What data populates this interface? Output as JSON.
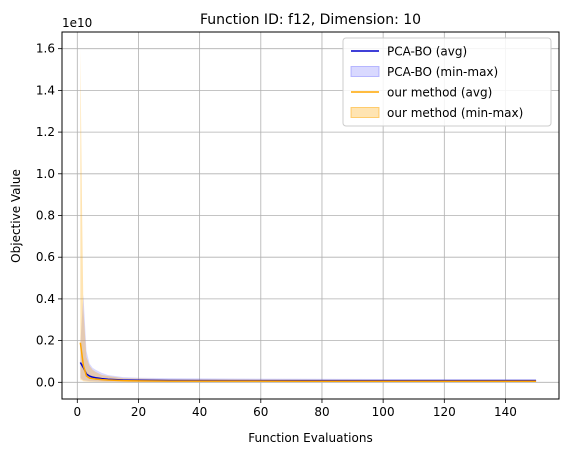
{
  "chart_data": {
    "type": "line",
    "title": "Function ID: f12, Dimension: 10",
    "xlabel": "Function Evaluations",
    "ylabel": "Objective Value",
    "y_offset_label": "1e10",
    "xlim": [
      -5,
      157.5
    ],
    "ylim": [
      -0.08,
      1.68
    ],
    "x_ticks": [
      0,
      20,
      40,
      60,
      80,
      100,
      120,
      140
    ],
    "x_tick_labels": [
      "0",
      "20",
      "40",
      "60",
      "80",
      "100",
      "120",
      "140"
    ],
    "y_ticks": [
      0.0,
      0.2,
      0.4,
      0.6,
      0.8,
      1.0,
      1.2,
      1.4,
      1.6
    ],
    "y_tick_labels": [
      "0.0",
      "0.2",
      "0.4",
      "0.6",
      "0.8",
      "1.0",
      "1.2",
      "1.4",
      "1.6"
    ],
    "grid": true,
    "legend_position": "top-right",
    "series": [
      {
        "name": "PCA-BO (avg)",
        "kind": "line",
        "color": "#0000cc",
        "x": [
          1,
          2,
          3,
          4,
          5,
          6,
          8,
          10,
          15,
          20,
          30,
          50,
          75,
          100,
          125,
          150
        ],
        "y": [
          0.095,
          0.07,
          0.04,
          0.03,
          0.025,
          0.022,
          0.018,
          0.015,
          0.011,
          0.01,
          0.009,
          0.008,
          0.008,
          0.008,
          0.008,
          0.008
        ]
      },
      {
        "name": "PCA-BO (min-max)",
        "kind": "band",
        "color": "#8080ff",
        "x": [
          1,
          2,
          3,
          4,
          5,
          6,
          8,
          10,
          15,
          20,
          30,
          50,
          75,
          100,
          125,
          150
        ],
        "lower": [
          0.02,
          0.01,
          0.008,
          0.006,
          0.005,
          0.004,
          0.004,
          0.003,
          0.003,
          0.003,
          0.003,
          0.003,
          0.003,
          0.003,
          0.003,
          0.003
        ],
        "upper": [
          0.19,
          0.42,
          0.15,
          0.09,
          0.07,
          0.06,
          0.045,
          0.035,
          0.025,
          0.022,
          0.02,
          0.018,
          0.017,
          0.016,
          0.016,
          0.016
        ]
      },
      {
        "name": "our method (avg)",
        "kind": "line",
        "color": "#ffa500",
        "x": [
          1,
          2,
          3,
          4,
          5,
          6,
          8,
          10,
          15,
          20,
          30,
          50,
          75,
          100,
          125,
          150
        ],
        "y": [
          0.19,
          0.08,
          0.03,
          0.02,
          0.018,
          0.016,
          0.013,
          0.011,
          0.008,
          0.007,
          0.006,
          0.006,
          0.005,
          0.005,
          0.005,
          0.005
        ]
      },
      {
        "name": "our method (min-max)",
        "kind": "band",
        "color": "#ffa500",
        "x": [
          1,
          1.5,
          2,
          3,
          4,
          5,
          6,
          8,
          10,
          15,
          20,
          30,
          50,
          75,
          100,
          125,
          150
        ],
        "lower": [
          0.01,
          0.01,
          0.005,
          0.004,
          0.003,
          0.003,
          0.003,
          0.002,
          0.002,
          0.002,
          0.002,
          0.002,
          0.002,
          0.002,
          0.002,
          0.002,
          0.002
        ],
        "upper": [
          1.6,
          0.9,
          0.35,
          0.12,
          0.08,
          0.06,
          0.05,
          0.035,
          0.03,
          0.02,
          0.018,
          0.015,
          0.014,
          0.013,
          0.012,
          0.012,
          0.012
        ]
      }
    ]
  }
}
